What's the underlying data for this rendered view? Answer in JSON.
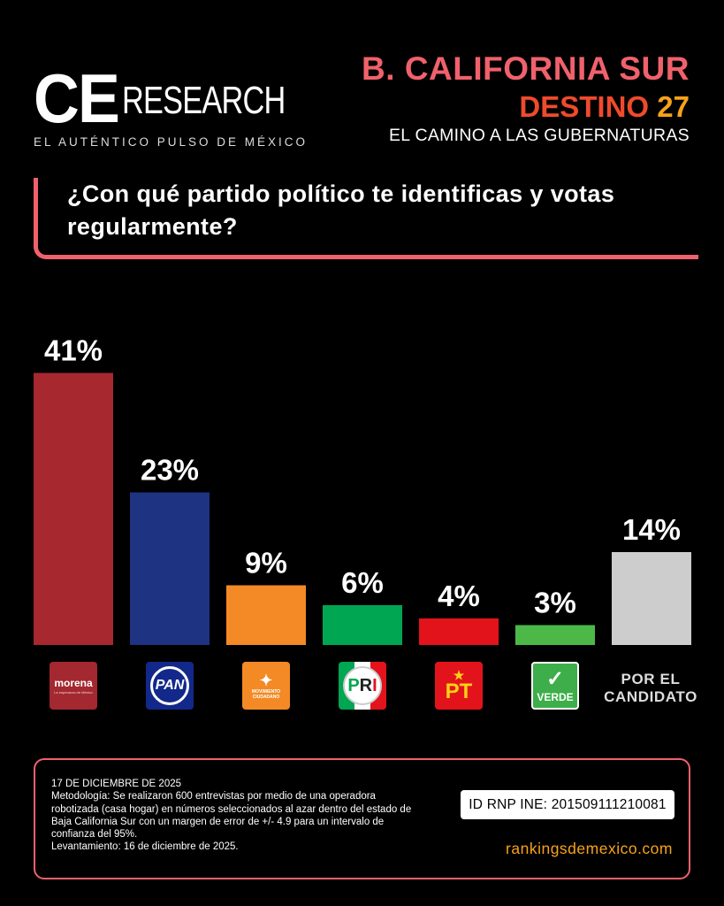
{
  "header": {
    "logo_ce": "CE",
    "logo_research": "RESEARCH",
    "logo_tagline": "EL AUTÉNTICO PULSO DE MÉXICO",
    "state": "B. CALIFORNIA SUR",
    "destino_word": "DESTINO",
    "destino_num": "27",
    "subtitle": "EL CAMINO A LAS GUBERNATURAS"
  },
  "question": "¿Con qué partido político te identificas y votas regularmente?",
  "party_logos": {
    "morena": "morena",
    "morena_sub": "La esperanza de México",
    "pan": "PAN",
    "mc": "MOVIMIENTO CIUDADANO",
    "pri_p": "P",
    "pri_r": "R",
    "pri_i": "I",
    "pt": "PT",
    "verde": "VERDE"
  },
  "candidate_label": "POR EL CANDIDATO",
  "chart_data": {
    "type": "bar",
    "categories": [
      "morena",
      "PAN",
      "MOVIMIENTO CIUDADANO",
      "PRI",
      "PT",
      "VERDE",
      "POR EL CANDIDATO"
    ],
    "values": [
      41,
      23,
      9,
      6,
      4,
      3,
      14
    ],
    "value_labels": [
      "41%",
      "23%",
      "9%",
      "6%",
      "4%",
      "3%",
      "14%"
    ],
    "unit": "%",
    "colors": [
      "#a7282f",
      "#1e3382",
      "#f38a25",
      "#00a651",
      "#e3131b",
      "#4cb848",
      "#cdcdcd"
    ],
    "title": "¿Con qué partido político te identificas y votas regularmente?",
    "grid": false,
    "legend": "none"
  },
  "methodology": {
    "date": "17 DE DICIEMBRE DE 2025",
    "text": "Metodología: Se realizaron 600 entrevistas por medio de una operadora robotizada (casa hogar) en números seleccionados al azar dentro del estado de Baja California Sur con un margen de error de +/- 4.9 para un intervalo de confianza del 95%.",
    "fieldwork": "Levantamiento: 16 de diciembre de 2025.",
    "rnp": "ID RNP INE: 201509111210081",
    "website": "rankingsdemexico.com"
  },
  "colors": {
    "accent": "#f0616c",
    "destino": "#f04a2c",
    "gold": "#f7a21b",
    "background": "#000000"
  }
}
